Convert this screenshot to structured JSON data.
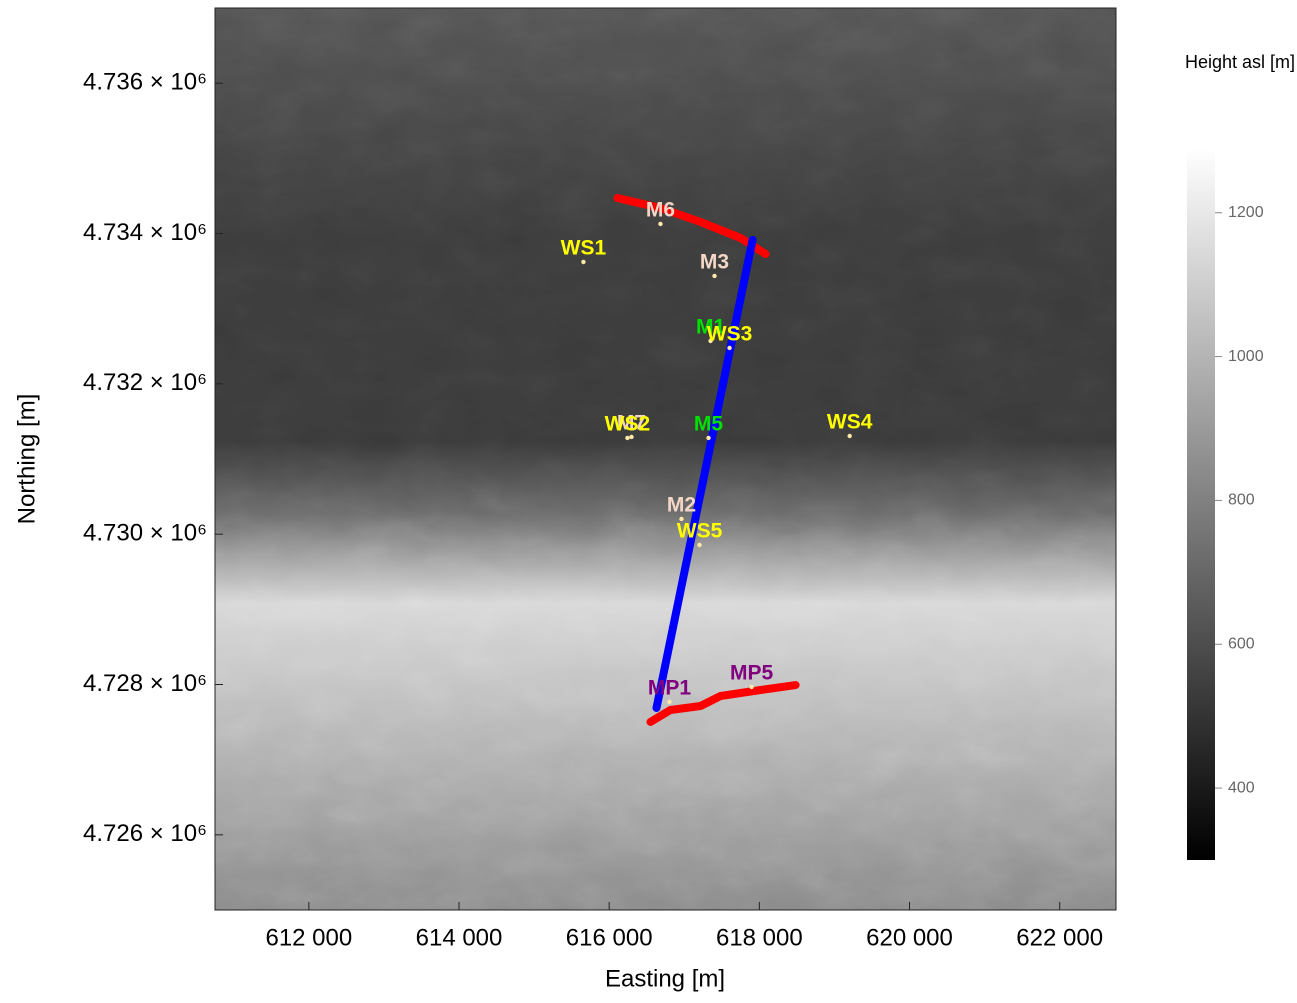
{
  "chart_data": {
    "type": "scatter",
    "x_label": "Easting   [m]",
    "y_label": "Northing   [m]",
    "xlim": [
      610750,
      622750
    ],
    "ylim": [
      4725000,
      4737000
    ],
    "xticks": [
      {
        "value": 612000,
        "label": "612 000"
      },
      {
        "value": 614000,
        "label": "614 000"
      },
      {
        "value": 616000,
        "label": "616 000"
      },
      {
        "value": 618000,
        "label": "618 000"
      },
      {
        "value": 620000,
        "label": "620 000"
      },
      {
        "value": 622000,
        "label": "622 000"
      }
    ],
    "yticks": [
      {
        "value": 4726000,
        "label": "4.726 × 10⁶"
      },
      {
        "value": 4728000,
        "label": "4.728 × 10⁶"
      },
      {
        "value": 4730000,
        "label": "4.730 × 10⁶"
      },
      {
        "value": 4732000,
        "label": "4.732 × 10⁶"
      },
      {
        "value": 4734000,
        "label": "4.734 × 10⁶"
      },
      {
        "value": 4736000,
        "label": "4.736 × 10⁶"
      }
    ],
    "points": {
      "labels": [
        "M6",
        "M3",
        "WS1",
        "M1",
        "WS3",
        "M7",
        "WS2",
        "M5",
        "WS4",
        "M2",
        "WS5",
        "MP1",
        "MP5"
      ],
      "label_colors": [
        "#f3d6c6",
        "#f3d6c6",
        "#ffff00",
        "#00e000",
        "#ffff00",
        "#f3d6c6",
        "#ffff00",
        "#00e000",
        "#ffff00",
        "#f3d6c6",
        "#ffff00",
        "#800080",
        "#800080"
      ],
      "x": [
        616683,
        617403,
        615657,
        617350,
        617603,
        616297,
        616243,
        617323,
        619203,
        616963,
        617203,
        616803,
        617897
      ],
      "y": [
        4734127,
        4733435,
        4733621,
        4732570,
        4732477,
        4731293,
        4731280,
        4731280,
        4731306,
        4730202,
        4729856,
        4727768,
        4727967
      ]
    },
    "lines": [
      {
        "color": "#ff0000",
        "x": [
          616110,
          616683,
          617217,
          617750,
          618083
        ],
        "y": [
          4734472,
          4734339,
          4734153,
          4733940,
          4733727
        ]
      },
      {
        "color": "#0000ff",
        "x": [
          617910,
          616630
        ],
        "y": [
          4733914,
          4727688
        ]
      },
      {
        "color": "#ff0000",
        "x": [
          616550,
          616817,
          617217,
          617483,
          618017,
          618483
        ],
        "y": [
          4727502,
          4727661,
          4727714,
          4727847,
          4727927,
          4727993
        ]
      }
    ],
    "colorbar": {
      "title": "Height asl [m]",
      "lim": [
        300,
        1290
      ],
      "ticks": [
        400,
        600,
        800,
        1000,
        1200
      ]
    }
  }
}
